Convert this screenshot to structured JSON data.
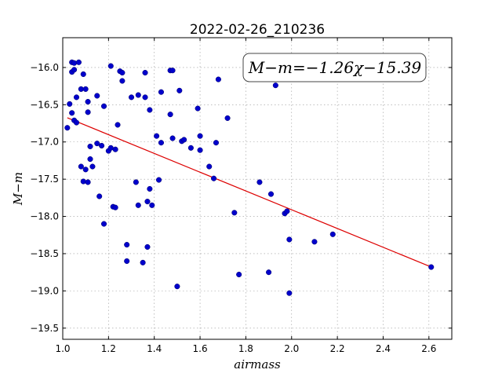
{
  "chart_data": {
    "type": "scatter",
    "title": "2022-02-26_210236",
    "xlabel": "airmass",
    "ylabel": "M−m",
    "xlim": [
      1.0,
      2.7
    ],
    "ylim": [
      -15.6,
      -19.65
    ],
    "y_inverted": true,
    "grid": true,
    "xticks": [
      1.0,
      1.2,
      1.4,
      1.6,
      1.8,
      2.0,
      2.2,
      2.4,
      2.6
    ],
    "xtick_labels": [
      "1.0",
      "1.2",
      "1.4",
      "1.6",
      "1.8",
      "2.0",
      "2.2",
      "2.4",
      "2.6"
    ],
    "yticks": [
      -16.0,
      -16.5,
      -17.0,
      -17.5,
      -18.0,
      -18.5,
      -19.0,
      -19.5
    ],
    "ytick_labels": [
      "−16.0",
      "−16.5",
      "−17.0",
      "−17.5",
      "−18.0",
      "−18.5",
      "−19.0",
      "−19.5"
    ],
    "annotation": "M−m=−1.26χ−15.39",
    "fit": {
      "slope": -1.26,
      "intercept": -15.39,
      "x_range": [
        1.02,
        2.61
      ]
    },
    "colors": {
      "points": "#0000cc",
      "fit": "#dd0000"
    },
    "points": [
      [
        1.02,
        -16.81
      ],
      [
        1.03,
        -16.49
      ],
      [
        1.04,
        -15.93
      ],
      [
        1.05,
        -15.94
      ],
      [
        1.04,
        -16.06
      ],
      [
        1.05,
        -16.03
      ],
      [
        1.04,
        -16.61
      ],
      [
        1.05,
        -16.71
      ],
      [
        1.06,
        -16.74
      ],
      [
        1.06,
        -16.4
      ],
      [
        1.07,
        -15.93
      ],
      [
        1.08,
        -16.29
      ],
      [
        1.09,
        -16.09
      ],
      [
        1.1,
        -16.29
      ],
      [
        1.11,
        -16.46
      ],
      [
        1.11,
        -16.6
      ],
      [
        1.08,
        -17.33
      ],
      [
        1.1,
        -17.37
      ],
      [
        1.09,
        -17.53
      ],
      [
        1.11,
        -17.54
      ],
      [
        1.12,
        -17.06
      ],
      [
        1.12,
        -17.23
      ],
      [
        1.13,
        -17.33
      ],
      [
        1.15,
        -17.02
      ],
      [
        1.15,
        -16.38
      ],
      [
        1.16,
        -17.73
      ],
      [
        1.17,
        -17.05
      ],
      [
        1.18,
        -16.52
      ],
      [
        1.18,
        -18.1
      ],
      [
        1.2,
        -17.12
      ],
      [
        1.21,
        -17.08
      ],
      [
        1.21,
        -15.98
      ],
      [
        1.22,
        -17.87
      ],
      [
        1.23,
        -17.88
      ],
      [
        1.23,
        -17.1
      ],
      [
        1.24,
        -16.77
      ],
      [
        1.25,
        -16.05
      ],
      [
        1.26,
        -16.07
      ],
      [
        1.26,
        -16.18
      ],
      [
        1.28,
        -18.38
      ],
      [
        1.28,
        -18.6
      ],
      [
        1.3,
        -16.4
      ],
      [
        1.32,
        -17.54
      ],
      [
        1.33,
        -17.85
      ],
      [
        1.33,
        -16.37
      ],
      [
        1.35,
        -18.62
      ],
      [
        1.36,
        -16.07
      ],
      [
        1.36,
        -16.4
      ],
      [
        1.37,
        -18.41
      ],
      [
        1.37,
        -17.8
      ],
      [
        1.38,
        -17.63
      ],
      [
        1.38,
        -16.57
      ],
      [
        1.39,
        -17.85
      ],
      [
        1.41,
        -16.92
      ],
      [
        1.42,
        -17.51
      ],
      [
        1.43,
        -16.33
      ],
      [
        1.43,
        -17.01
      ],
      [
        1.47,
        -16.04
      ],
      [
        1.48,
        -16.04
      ],
      [
        1.47,
        -16.63
      ],
      [
        1.48,
        -16.95
      ],
      [
        1.5,
        -18.94
      ],
      [
        1.51,
        -16.31
      ],
      [
        1.52,
        -16.99
      ],
      [
        1.53,
        -16.97
      ],
      [
        1.56,
        -17.08
      ],
      [
        1.59,
        -16.55
      ],
      [
        1.6,
        -16.92
      ],
      [
        1.6,
        -17.11
      ],
      [
        1.64,
        -17.33
      ],
      [
        1.66,
        -17.49
      ],
      [
        1.67,
        -17.01
      ],
      [
        1.68,
        -16.16
      ],
      [
        1.72,
        -16.68
      ],
      [
        1.75,
        -17.95
      ],
      [
        1.77,
        -18.78
      ],
      [
        1.86,
        -17.54
      ],
      [
        1.9,
        -18.75
      ],
      [
        1.91,
        -17.7
      ],
      [
        1.93,
        -16.24
      ],
      [
        1.97,
        -17.96
      ],
      [
        1.98,
        -17.93
      ],
      [
        1.99,
        -18.31
      ],
      [
        1.99,
        -19.03
      ],
      [
        2.1,
        -18.34
      ],
      [
        2.18,
        -18.24
      ],
      [
        2.61,
        -18.68
      ]
    ]
  }
}
